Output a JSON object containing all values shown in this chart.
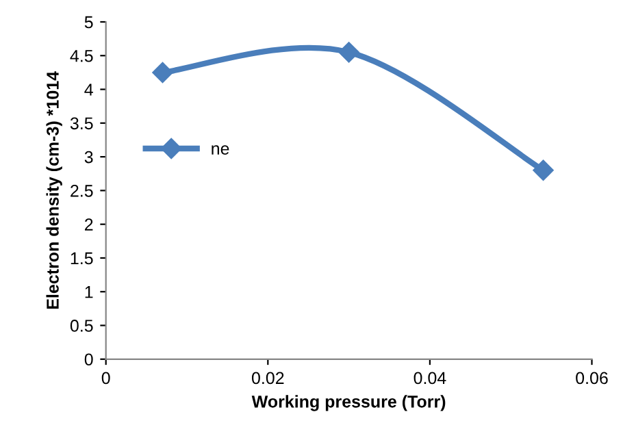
{
  "chart_data": {
    "type": "line",
    "xlabel": "Working pressure (Torr)",
    "ylabel": "Electron density (cm-3) *1014",
    "x": [
      0.007,
      0.03,
      0.054
    ],
    "series": [
      {
        "name": "ne",
        "color": "#4a7ebb",
        "values": [
          4.25,
          4.55,
          2.8
        ]
      }
    ],
    "xlim": [
      0,
      0.06
    ],
    "xticks": [
      0,
      0.02,
      0.04,
      0.06
    ],
    "ylim": [
      0,
      5
    ],
    "yticks": [
      0,
      0.5,
      1,
      1.5,
      2,
      2.5,
      3,
      3.5,
      4,
      4.5,
      5
    ],
    "grid": false,
    "legend": "left",
    "marker": "diamond",
    "line_style": "solid"
  }
}
